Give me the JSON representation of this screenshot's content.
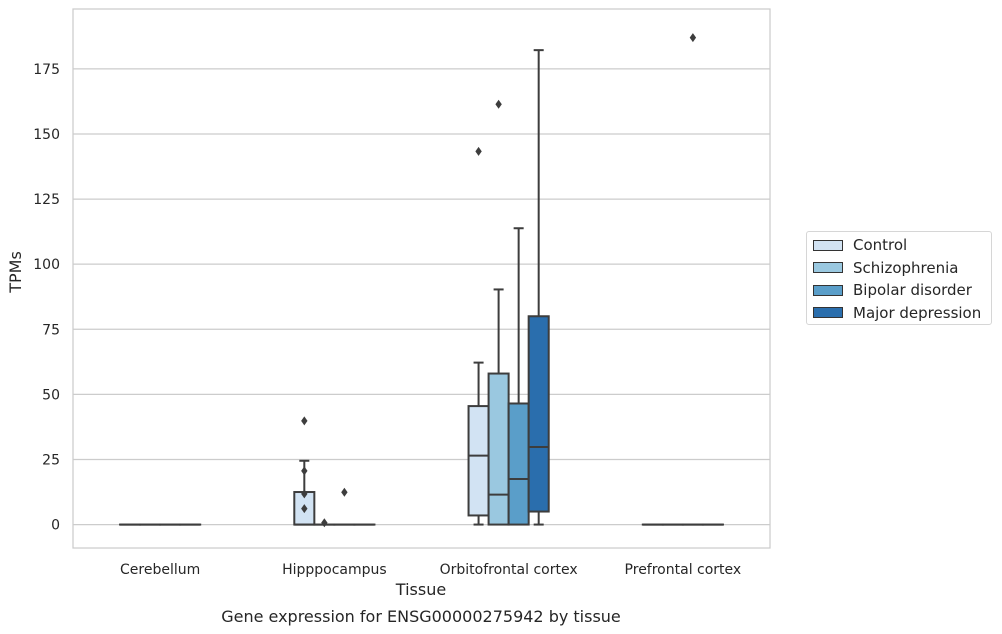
{
  "chart_data": {
    "type": "box",
    "title": "",
    "caption": "Gene expression for ENSG00000275942 by tissue",
    "xlabel": "Tissue",
    "ylabel": "TPMs",
    "ylim": [
      -9,
      198
    ],
    "yticks": [
      0,
      25,
      50,
      75,
      100,
      125,
      150,
      175
    ],
    "grid": "horizontal",
    "legend_position": "right",
    "categories": [
      "Cerebellum",
      "Hipppocampus",
      "Orbitofrontal cortex",
      "Prefrontal cortex"
    ],
    "series": [
      {
        "name": "Control",
        "color": "#d2e3f3",
        "boxes": [
          {
            "min": 0,
            "q1": 0,
            "median": 0,
            "q3": 0,
            "max": 0,
            "outliers": []
          },
          {
            "min": 0,
            "q1": 0,
            "median": 0,
            "q3": 12.5,
            "max": 24.5,
            "outliers": [
              39.8,
              20.6,
              11.8,
              6.1
            ]
          },
          {
            "min": 0,
            "q1": 3.5,
            "median": 26.5,
            "q3": 45.5,
            "max": 62.2,
            "outliers": [
              143.3
            ]
          },
          {
            "min": 0,
            "q1": 0,
            "median": 0,
            "q3": 0,
            "max": 0,
            "outliers": []
          }
        ]
      },
      {
        "name": "Schizophrenia",
        "color": "#9ac8e0",
        "boxes": [
          {
            "min": 0,
            "q1": 0,
            "median": 0,
            "q3": 0,
            "max": 0,
            "outliers": []
          },
          {
            "min": 0,
            "q1": 0,
            "median": 0,
            "q3": 0,
            "max": 0,
            "outliers": [
              0.7
            ]
          },
          {
            "min": 0,
            "q1": 0,
            "median": 11.5,
            "q3": 58.0,
            "max": 90.3,
            "outliers": [
              161.4
            ]
          },
          {
            "min": 0,
            "q1": 0,
            "median": 0,
            "q3": 0,
            "max": 0,
            "outliers": []
          }
        ]
      },
      {
        "name": "Bipolar disorder",
        "color": "#5a9ec9",
        "boxes": [
          {
            "min": 0,
            "q1": 0,
            "median": 0,
            "q3": 0,
            "max": 0,
            "outliers": []
          },
          {
            "min": 0,
            "q1": 0,
            "median": 0,
            "q3": 0,
            "max": 0,
            "outliers": [
              12.4
            ]
          },
          {
            "min": 0,
            "q1": 0,
            "median": 17.5,
            "q3": 46.5,
            "max": 113.8,
            "outliers": []
          },
          {
            "min": 0,
            "q1": 0,
            "median": 0,
            "q3": 0,
            "max": 0,
            "outliers": [
              187.0
            ]
          }
        ]
      },
      {
        "name": "Major depression",
        "color": "#2a6ead",
        "boxes": [
          {
            "min": 0,
            "q1": 0,
            "median": 0,
            "q3": 0,
            "max": 0,
            "outliers": []
          },
          {
            "min": 0,
            "q1": 0,
            "median": 0,
            "q3": 0,
            "max": 0,
            "outliers": []
          },
          {
            "min": 0,
            "q1": 5.0,
            "median": 29.8,
            "q3": 80.0,
            "max": 182.2,
            "outliers": []
          },
          {
            "min": 0,
            "q1": 0,
            "median": 0,
            "q3": 0,
            "max": 0,
            "outliers": []
          }
        ]
      }
    ]
  }
}
